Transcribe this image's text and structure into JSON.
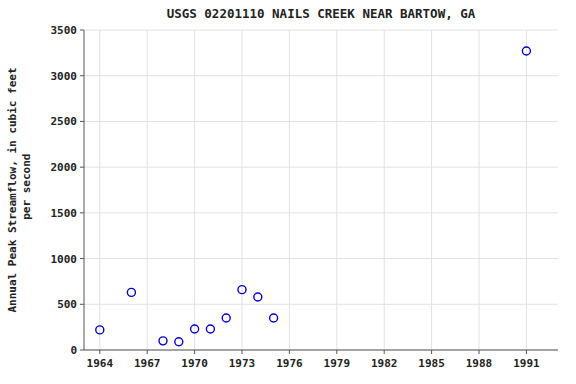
{
  "chart_data": {
    "type": "scatter",
    "title": "USGS 02201110 NAILS CREEK NEAR BARTOW, GA",
    "ylabel": "Annual Peak Streamflow, in cubic feet\n per second",
    "x": [
      1964,
      1966,
      1968,
      1969,
      1970,
      1971,
      1972,
      1973,
      1974,
      1975,
      1991
    ],
    "values": [
      220,
      630,
      100,
      90,
      230,
      230,
      350,
      660,
      580,
      350,
      3270
    ],
    "xlim": [
      1963,
      1993
    ],
    "ylim": [
      0,
      3500
    ],
    "xticks": [
      1964,
      1967,
      1970,
      1973,
      1976,
      1979,
      1982,
      1985,
      1988,
      1991
    ],
    "yticks": [
      0,
      500,
      1000,
      1500,
      2000,
      2500,
      3000,
      3500
    ],
    "color": "#0000cc",
    "marker": "open-circle",
    "grid": true
  }
}
